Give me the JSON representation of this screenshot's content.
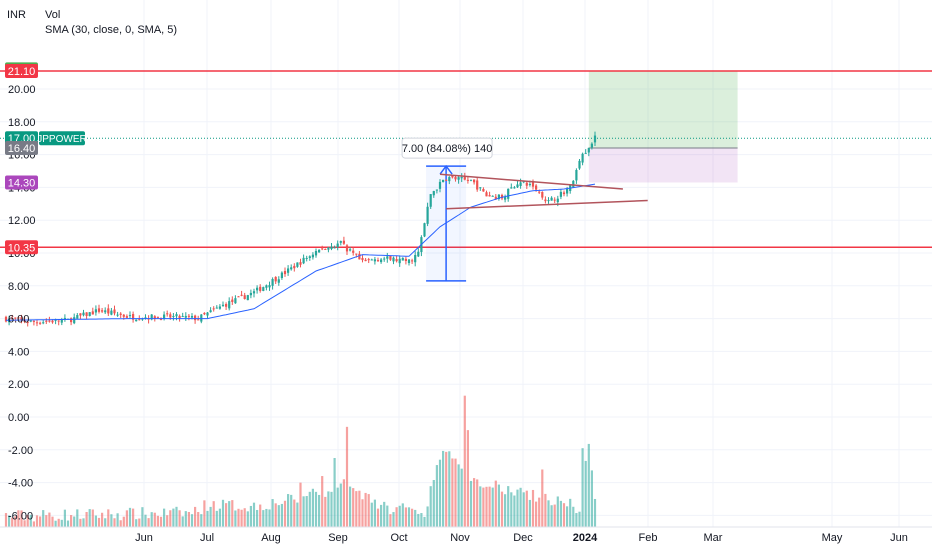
{
  "header": {
    "currency": "INR",
    "vol_label": "Vol",
    "sma_label": "SMA (30, close, 0, SMA, 5)"
  },
  "badges": [
    {
      "label": "21.20",
      "value": 21.2,
      "color": "#4caf50"
    },
    {
      "label": "21.10",
      "value": 21.1,
      "color": "#f23645"
    },
    {
      "label": "17.00",
      "value": 17.0,
      "color": "#089981"
    },
    {
      "label": "16.40",
      "value": 16.4,
      "color": "#787b86"
    },
    {
      "label": "14.30",
      "value": 14.3,
      "color": "#ab47bc"
    },
    {
      "label": "10.35",
      "value": 10.35,
      "color": "#f23645"
    }
  ],
  "symbol_tag": "JPPOWER",
  "measure_label": "7.00 (84.08%) 140",
  "colors": {
    "up": "#26a69a",
    "down": "#ef5350",
    "sma": "#2962ff",
    "hline": "#f23645",
    "trend": "#b2545c",
    "measure": "#2962ff"
  },
  "chart_data": {
    "type": "candlestick",
    "y_ticks": [
      "20.00",
      "18.00",
      "16.00",
      "14.00",
      "12.00",
      "10.00",
      "8.00",
      "6.00",
      "4.00",
      "2.00",
      "0.00",
      "-2.00",
      "-4.00",
      "-6.00"
    ],
    "x_ticks": [
      "Jun",
      "Jul",
      "Aug",
      "Sep",
      "Oct",
      "Nov",
      "Dec",
      "2024",
      "Feb",
      "Mar",
      "May",
      "Jun"
    ],
    "ylim": [
      -6.8,
      22.2
    ],
    "horizontal_levels": [
      21.1,
      10.35
    ],
    "last_price": 17.0,
    "close_anchors": [
      [
        0,
        6.0
      ],
      [
        8,
        5.8
      ],
      [
        20,
        5.9
      ],
      [
        30,
        6.5
      ],
      [
        40,
        6.1
      ],
      [
        55,
        6.1
      ],
      [
        62,
        6.0
      ],
      [
        70,
        6.8
      ],
      [
        80,
        7.6
      ],
      [
        90,
        8.8
      ],
      [
        100,
        10.1
      ],
      [
        108,
        10.6
      ],
      [
        115,
        9.4
      ],
      [
        120,
        9.7
      ],
      [
        130,
        9.5
      ],
      [
        133,
        10.0
      ],
      [
        137,
        13.6
      ],
      [
        142,
        14.6
      ],
      [
        150,
        14.4
      ],
      [
        155,
        13.5
      ],
      [
        160,
        13.4
      ],
      [
        165,
        14.3
      ],
      [
        170,
        14.1
      ],
      [
        175,
        13.1
      ],
      [
        182,
        14.0
      ],
      [
        186,
        16.0
      ],
      [
        190,
        17.0
      ]
    ],
    "sma_anchors": [
      [
        0,
        5.9
      ],
      [
        40,
        6.0
      ],
      [
        65,
        6.0
      ],
      [
        80,
        6.6
      ],
      [
        100,
        8.9
      ],
      [
        115,
        9.9
      ],
      [
        130,
        9.8
      ],
      [
        140,
        11.6
      ],
      [
        150,
        12.8
      ],
      [
        160,
        13.4
      ],
      [
        170,
        13.8
      ],
      [
        180,
        13.9
      ],
      [
        190,
        14.2
      ]
    ],
    "volume_anchors": [
      [
        0,
        -6.2
      ],
      [
        60,
        -6.0
      ],
      [
        65,
        -5.5
      ],
      [
        80,
        -5.6
      ],
      [
        95,
        -5.1
      ],
      [
        110,
        -4.3
      ],
      [
        120,
        -5.6
      ],
      [
        135,
        -6.0
      ],
      [
        141,
        -1.9
      ],
      [
        145,
        -3.0
      ],
      [
        150,
        -4.2
      ],
      [
        165,
        -4.6
      ],
      [
        185,
        -5.7
      ],
      [
        188,
        -1.9
      ],
      [
        190,
        -4.8
      ]
    ],
    "volume_spikes": [
      [
        148,
        1.3
      ],
      [
        149,
        1.2
      ],
      [
        110,
        -0.6
      ],
      [
        106,
        -2.5
      ],
      [
        149,
        -0.8
      ],
      [
        150,
        -3.9
      ],
      [
        173,
        -3.2
      ],
      [
        186,
        -1.9
      ],
      [
        102,
        -3.6
      ],
      [
        95,
        -4.0
      ]
    ],
    "trendline_upper": [
      [
        140,
        14.8
      ],
      [
        199,
        13.9
      ]
    ],
    "trendline_lower": [
      [
        142,
        12.7
      ],
      [
        207,
        13.2
      ]
    ],
    "measure": {
      "x": 141,
      "from": 8.3,
      "to": 15.3
    },
    "position": {
      "x_start": 188,
      "x_end": 236,
      "entry": 16.4,
      "target": 21.1,
      "stop": 14.3
    }
  }
}
